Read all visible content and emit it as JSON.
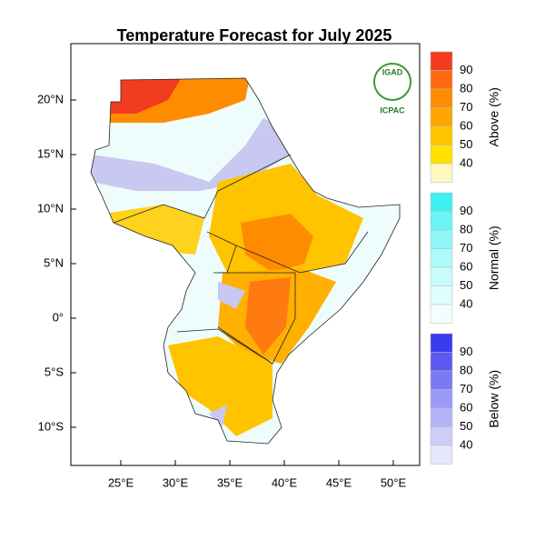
{
  "title": "Temperature Forecast for July 2025",
  "logo": {
    "name": "IGAD",
    "org": "ICPAC"
  },
  "longitude_labels": [
    "25°E",
    "30°E",
    "35°E",
    "40°E",
    "45°E",
    "50°E"
  ],
  "latitude_labels": [
    "20°N",
    "15°N",
    "10°N",
    "5°N",
    "0°",
    "5°S",
    "10°S"
  ],
  "legend": [
    {
      "title": "Above (%)",
      "levels": [
        90,
        80,
        70,
        60,
        50,
        40
      ]
    },
    {
      "title": "Normal (%)",
      "levels": [
        90,
        80,
        70,
        60,
        50,
        40
      ]
    },
    {
      "title": "Below (%)",
      "levels": [
        90,
        80,
        70,
        60,
        50,
        40
      ]
    }
  ]
}
